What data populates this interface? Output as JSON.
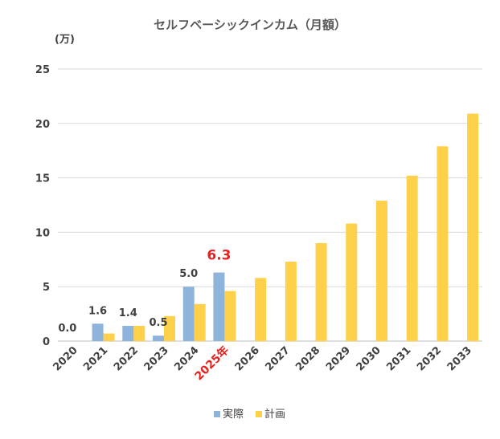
{
  "chart_data": {
    "type": "bar",
    "title": "セルフベーシックインカム（月額）",
    "unit_label": "(万)",
    "categories": [
      "2020",
      "2021",
      "2022",
      "2023",
      "2024",
      "2025年",
      "2026",
      "2027",
      "2028",
      "2029",
      "2030",
      "2031",
      "2032",
      "2033"
    ],
    "highlight_category_index": 5,
    "highlight_color": "#e8201e",
    "ylim": [
      0,
      25
    ],
    "yticks": [
      0,
      5,
      10,
      15,
      20,
      25
    ],
    "grid": true,
    "legend_position": "bottom",
    "series": [
      {
        "name": "実際",
        "color": "#8fb4dc",
        "values": [
          0.0,
          1.6,
          1.4,
          0.5,
          5.0,
          6.3,
          null,
          null,
          null,
          null,
          null,
          null,
          null,
          null
        ],
        "data_labels": [
          "0.0",
          "1.6",
          "1.4",
          "0.5",
          "5.0",
          "6.3",
          null,
          null,
          null,
          null,
          null,
          null,
          null,
          null
        ]
      },
      {
        "name": "計画",
        "color": "#ffd04a",
        "values": [
          null,
          0.7,
          1.4,
          2.3,
          3.4,
          4.6,
          5.8,
          7.3,
          9.0,
          10.8,
          12.9,
          15.2,
          17.9,
          20.9
        ]
      }
    ]
  }
}
